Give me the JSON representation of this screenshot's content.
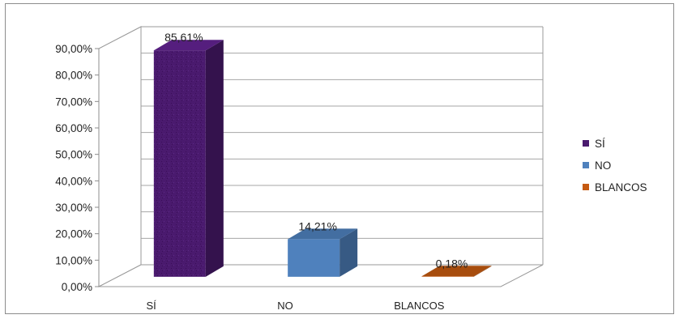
{
  "chart_data": {
    "type": "bar",
    "style": "3d-column",
    "categories": [
      "SÍ",
      "NO",
      "BLANCOS"
    ],
    "values": [
      85.61,
      14.21,
      0.18
    ],
    "data_labels": [
      "85,61%",
      "14,21%",
      "0,18%"
    ],
    "y_ticks": [
      "0,00%",
      "10,00%",
      "20,00%",
      "30,00%",
      "40,00%",
      "50,00%",
      "60,00%",
      "70,00%",
      "80,00%",
      "90,00%"
    ],
    "ylim": [
      0,
      90
    ],
    "grid": true,
    "legend": {
      "position": "right",
      "entries": [
        {
          "name": "SÍ",
          "color": "#4a1a6e"
        },
        {
          "name": "NO",
          "color": "#4f81bd"
        },
        {
          "name": "BLANCOS",
          "color": "#c55a11"
        }
      ]
    },
    "colors": [
      "#4a1a6e",
      "#4f81bd",
      "#c55a11"
    ]
  }
}
